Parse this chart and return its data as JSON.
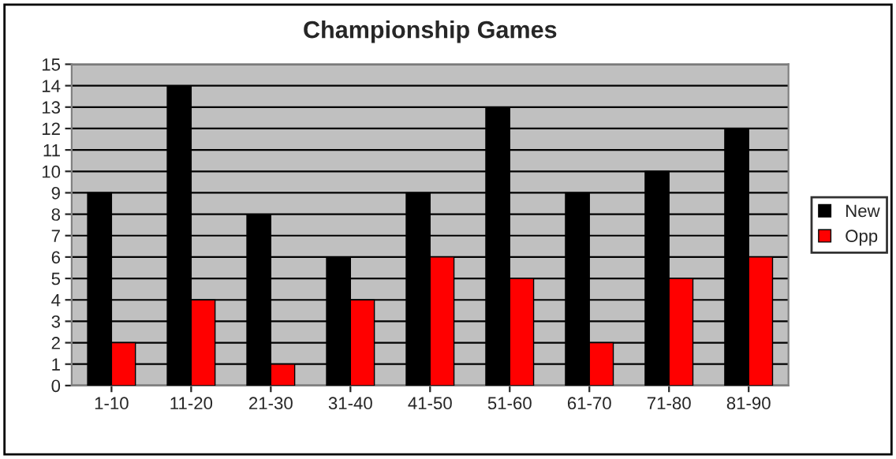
{
  "chart_data": {
    "type": "bar",
    "title": "Championship Games",
    "categories": [
      "1-10",
      "11-20",
      "21-30",
      "31-40",
      "41-50",
      "51-60",
      "61-70",
      "71-80",
      "81-90"
    ],
    "series": [
      {
        "name": "New",
        "color": "#000000",
        "values": [
          9,
          14,
          8,
          6,
          9,
          13,
          9,
          10,
          12
        ]
      },
      {
        "name": "Opp",
        "color": "#ff0000",
        "values": [
          2,
          4,
          1,
          4,
          6,
          5,
          2,
          5,
          6
        ]
      }
    ],
    "ylim": [
      0,
      15
    ],
    "yticks": [
      0,
      1,
      2,
      3,
      4,
      5,
      6,
      7,
      8,
      9,
      10,
      11,
      12,
      13,
      14,
      15
    ],
    "grid": "y",
    "legend": "right"
  }
}
